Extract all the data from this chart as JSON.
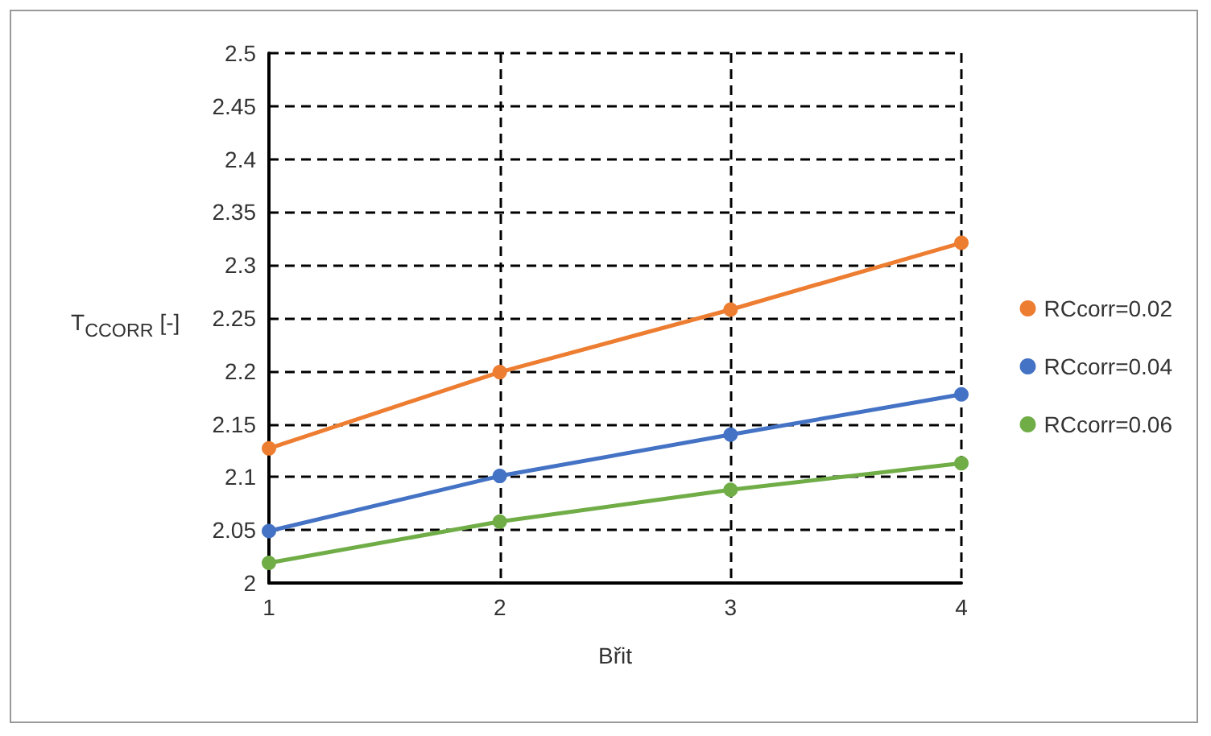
{
  "chart_data": {
    "type": "line",
    "xlabel": "Břit",
    "ylabel": "T$_{CCORR}$ [-]",
    "categories": [
      "1",
      "2",
      "3",
      "4"
    ],
    "series": [
      {
        "name": "RCcorr=0.02",
        "color": "#ed7d31",
        "values": [
          2.127,
          2.199,
          2.258,
          2.321
        ]
      },
      {
        "name": "RCcorr=0.04",
        "color": "#4472c4",
        "values": [
          2.049,
          2.101,
          2.14,
          2.178
        ]
      },
      {
        "name": "RCcorr=0.06",
        "color": "#70ad47",
        "values": [
          2.019,
          2.058,
          2.088,
          2.113
        ]
      }
    ],
    "ylim": [
      2,
      2.5
    ],
    "yticks": [
      2,
      2.05,
      2.1,
      2.15,
      2.2,
      2.25,
      2.3,
      2.35,
      2.4,
      2.45,
      2.5
    ],
    "grid": true,
    "legend": "right",
    "marker": "circle",
    "line_style": "solid"
  }
}
